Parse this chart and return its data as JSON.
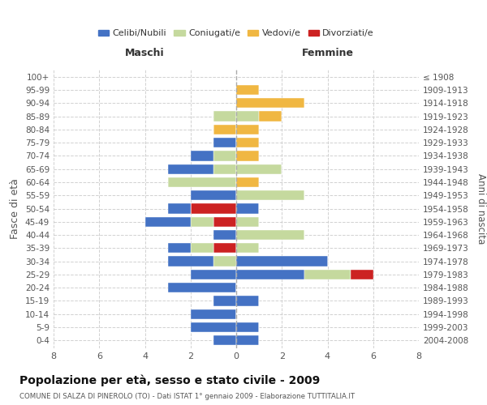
{
  "age_groups": [
    "0-4",
    "5-9",
    "10-14",
    "15-19",
    "20-24",
    "25-29",
    "30-34",
    "35-39",
    "40-44",
    "45-49",
    "50-54",
    "55-59",
    "60-64",
    "65-69",
    "70-74",
    "75-79",
    "80-84",
    "85-89",
    "90-94",
    "95-99",
    "100+"
  ],
  "birth_years": [
    "2004-2008",
    "1999-2003",
    "1994-1998",
    "1989-1993",
    "1984-1988",
    "1979-1983",
    "1974-1978",
    "1969-1973",
    "1964-1968",
    "1959-1963",
    "1954-1958",
    "1949-1953",
    "1944-1948",
    "1939-1943",
    "1934-1938",
    "1929-1933",
    "1924-1928",
    "1919-1923",
    "1914-1918",
    "1909-1913",
    "≤ 1908"
  ],
  "male_celibi": [
    1,
    2,
    2,
    1,
    3,
    2,
    2,
    1,
    1,
    2,
    1,
    2,
    0,
    2,
    1,
    1,
    0,
    0,
    0,
    0,
    0
  ],
  "male_coniugati": [
    0,
    0,
    0,
    0,
    0,
    0,
    1,
    1,
    0,
    1,
    0,
    0,
    3,
    1,
    1,
    0,
    0,
    1,
    0,
    0,
    0
  ],
  "male_vedovi": [
    0,
    0,
    0,
    0,
    0,
    0,
    0,
    0,
    0,
    0,
    0,
    0,
    0,
    0,
    0,
    0,
    1,
    0,
    0,
    0,
    0
  ],
  "male_divorziati": [
    0,
    0,
    0,
    0,
    0,
    0,
    0,
    1,
    0,
    1,
    2,
    0,
    0,
    0,
    0,
    0,
    0,
    0,
    0,
    0,
    0
  ],
  "female_celibi": [
    1,
    1,
    0,
    1,
    0,
    3,
    4,
    0,
    0,
    0,
    1,
    0,
    0,
    0,
    0,
    0,
    0,
    0,
    0,
    0,
    0
  ],
  "female_coniugati": [
    0,
    0,
    0,
    0,
    0,
    2,
    0,
    1,
    3,
    1,
    0,
    3,
    0,
    2,
    0,
    0,
    0,
    1,
    0,
    0,
    0
  ],
  "female_vedovi": [
    0,
    0,
    0,
    0,
    0,
    0,
    0,
    0,
    0,
    0,
    0,
    0,
    1,
    0,
    1,
    1,
    1,
    1,
    3,
    1,
    0
  ],
  "female_divorziati": [
    0,
    0,
    0,
    0,
    0,
    1,
    0,
    0,
    0,
    0,
    0,
    0,
    0,
    0,
    0,
    0,
    0,
    0,
    0,
    0,
    0
  ],
  "color_celibi": "#4472c4",
  "color_coniugati": "#c5d99e",
  "color_vedovi": "#f0b742",
  "color_divorziati": "#cc2222",
  "title": "Popolazione per età, sesso e stato civile - 2009",
  "subtitle": "COMUNE DI SALZA DI PINEROLO (TO) - Dati ISTAT 1° gennaio 2009 - Elaborazione TUTTITALIA.IT",
  "xlabel_left": "Maschi",
  "xlabel_right": "Femmine",
  "ylabel_left": "Fasce di età",
  "ylabel_right": "Anni di nascita",
  "xlim": 8,
  "background_color": "#ffffff",
  "grid_color": "#cccccc"
}
